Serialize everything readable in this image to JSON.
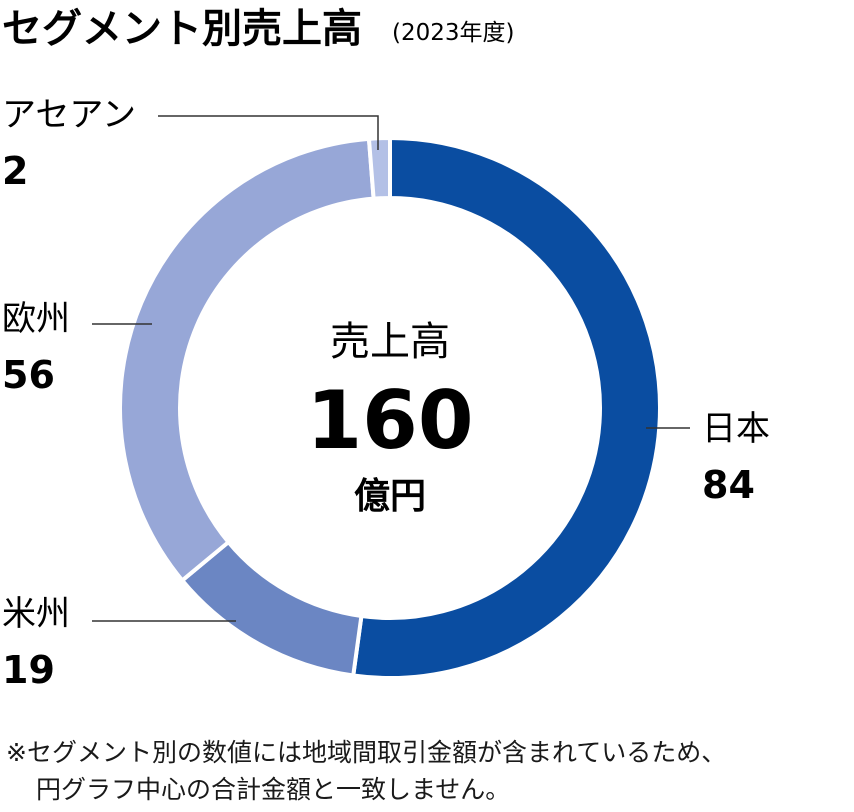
{
  "chart_data": {
    "type": "pie",
    "title": "セグメント別売上高",
    "subtitle": "(2023年度)",
    "center": {
      "label": "売上高",
      "value": "160",
      "unit": "億円"
    },
    "slices": [
      {
        "name": "日本",
        "value": 84,
        "color": "#0a4da1"
      },
      {
        "name": "米州",
        "value": 19,
        "color": "#6b86c3"
      },
      {
        "name": "欧州",
        "value": 56,
        "color": "#97a7d7"
      },
      {
        "name": "アセアン",
        "value": 2,
        "color": "#b3c0e6"
      }
    ]
  },
  "footnote": {
    "line1": "※セグメント別の数値には地域間取引金額が含まれているため、",
    "line2": "円グラフ中心の合計金額と一致しません。"
  }
}
